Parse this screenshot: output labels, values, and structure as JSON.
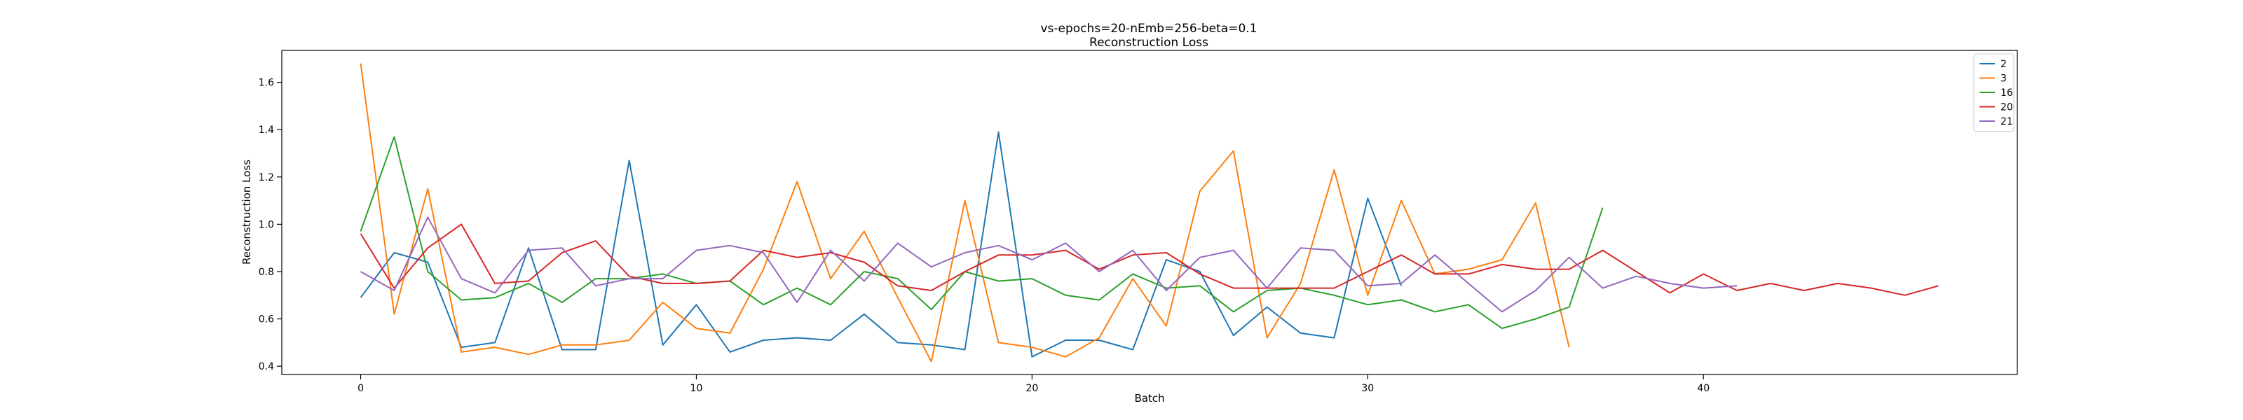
{
  "chart_data": {
    "type": "line",
    "title": "vs-epochs=20-nEmb=256-beta=0.1",
    "subtitle": "Reconstruction Loss",
    "xlabel": "Batch",
    "ylabel": "Reconstruction Loss",
    "xlim": [
      -2.35,
      49.35
    ],
    "ylim": [
      0.365,
      1.735
    ],
    "xticks": [
      0,
      10,
      20,
      30,
      40
    ],
    "yticks": [
      0.4,
      0.6,
      0.8,
      1.0,
      1.2,
      1.4,
      1.6
    ],
    "xtick_labels": [
      "0",
      "10",
      "20",
      "30",
      "40"
    ],
    "ytick_labels": [
      "0.4",
      "0.6",
      "0.8",
      "1.0",
      "1.2",
      "1.4",
      "1.6"
    ],
    "grid": false,
    "legend_position": "top-right",
    "series": [
      {
        "name": "2",
        "color": "#1f77b4",
        "x": [
          0,
          1,
          2,
          3,
          4,
          5,
          6,
          7,
          8,
          9,
          10,
          11,
          12,
          13,
          14,
          15,
          16,
          17,
          18,
          19,
          20,
          21,
          22,
          23,
          24,
          25,
          26,
          27,
          28,
          29,
          30,
          31
        ],
        "values": [
          0.69,
          0.88,
          0.84,
          0.48,
          0.5,
          0.9,
          0.47,
          0.47,
          1.27,
          0.49,
          0.66,
          0.46,
          0.51,
          0.52,
          0.51,
          0.62,
          0.5,
          0.49,
          0.47,
          1.39,
          0.44,
          0.51,
          0.51,
          0.47,
          0.85,
          0.8,
          0.53,
          0.65,
          0.54,
          0.52,
          1.11,
          0.74
        ]
      },
      {
        "name": "3",
        "color": "#ff7f0e",
        "x": [
          0,
          1,
          2,
          3,
          4,
          5,
          6,
          7,
          8,
          9,
          10,
          11,
          12,
          13,
          14,
          15,
          16,
          17,
          18,
          19,
          20,
          21,
          22,
          23,
          24,
          25,
          26,
          27,
          28,
          29,
          30,
          31,
          32,
          33,
          34,
          35,
          36
        ],
        "values": [
          1.68,
          0.62,
          1.15,
          0.46,
          0.48,
          0.45,
          0.49,
          0.49,
          0.51,
          0.67,
          0.56,
          0.54,
          0.81,
          1.18,
          0.77,
          0.97,
          0.69,
          0.42,
          1.1,
          0.5,
          0.48,
          0.44,
          0.52,
          0.77,
          0.57,
          1.14,
          1.31,
          0.52,
          0.75,
          1.23,
          0.7,
          1.1,
          0.79,
          0.81,
          0.85,
          1.09,
          0.48
        ]
      },
      {
        "name": "16",
        "color": "#2ca02c",
        "x": [
          0,
          1,
          2,
          3,
          4,
          5,
          6,
          7,
          8,
          9,
          10,
          11,
          12,
          13,
          14,
          15,
          16,
          17,
          18,
          19,
          20,
          21,
          22,
          23,
          24,
          25,
          26,
          27,
          28,
          29,
          30,
          31,
          32,
          33,
          34,
          35,
          36,
          37
        ],
        "values": [
          0.97,
          1.37,
          0.8,
          0.68,
          0.69,
          0.75,
          0.67,
          0.77,
          0.77,
          0.79,
          0.75,
          0.76,
          0.66,
          0.73,
          0.66,
          0.8,
          0.77,
          0.64,
          0.8,
          0.76,
          0.77,
          0.7,
          0.68,
          0.79,
          0.73,
          0.74,
          0.63,
          0.72,
          0.73,
          0.7,
          0.66,
          0.68,
          0.63,
          0.66,
          0.56,
          0.6,
          0.65,
          1.07
        ]
      },
      {
        "name": "20",
        "color": "#d62728",
        "x": [
          0,
          1,
          2,
          3,
          4,
          5,
          6,
          7,
          8,
          9,
          10,
          11,
          12,
          13,
          14,
          15,
          16,
          17,
          18,
          19,
          20,
          21,
          22,
          23,
          24,
          25,
          26,
          27,
          28,
          29,
          30,
          31,
          32,
          33,
          34,
          35,
          36,
          37,
          38,
          39,
          40,
          41,
          42,
          43,
          44,
          45,
          46,
          47
        ],
        "values": [
          0.96,
          0.73,
          0.9,
          1.0,
          0.75,
          0.76,
          0.88,
          0.93,
          0.78,
          0.75,
          0.75,
          0.76,
          0.89,
          0.86,
          0.88,
          0.84,
          0.74,
          0.72,
          0.8,
          0.87,
          0.87,
          0.89,
          0.81,
          0.87,
          0.88,
          0.79,
          0.73,
          0.73,
          0.73,
          0.73,
          0.8,
          0.87,
          0.79,
          0.79,
          0.83,
          0.81,
          0.81,
          0.89,
          0.8,
          0.71,
          0.79,
          0.72,
          0.75,
          0.72,
          0.75,
          0.73,
          0.7,
          0.74
        ]
      },
      {
        "name": "21",
        "color": "#9467bd",
        "x": [
          0,
          1,
          2,
          3,
          4,
          5,
          6,
          7,
          8,
          9,
          10,
          11,
          12,
          13,
          14,
          15,
          16,
          17,
          18,
          19,
          20,
          21,
          22,
          23,
          24,
          25,
          26,
          27,
          28,
          29,
          30,
          31,
          32,
          33,
          34,
          35,
          36,
          37,
          38,
          39,
          40,
          41
        ],
        "values": [
          0.8,
          0.72,
          1.03,
          0.77,
          0.71,
          0.89,
          0.9,
          0.74,
          0.77,
          0.77,
          0.89,
          0.91,
          0.88,
          0.67,
          0.89,
          0.76,
          0.92,
          0.82,
          0.88,
          0.91,
          0.85,
          0.92,
          0.8,
          0.89,
          0.72,
          0.86,
          0.89,
          0.73,
          0.9,
          0.89,
          0.74,
          0.75,
          0.87,
          0.75,
          0.63,
          0.72,
          0.86,
          0.73,
          0.78,
          0.75,
          0.73,
          0.74
        ]
      }
    ]
  }
}
